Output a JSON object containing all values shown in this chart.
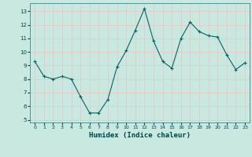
{
  "x": [
    0,
    1,
    2,
    3,
    4,
    5,
    6,
    7,
    8,
    9,
    10,
    11,
    12,
    13,
    14,
    15,
    16,
    17,
    18,
    19,
    20,
    21,
    22,
    23
  ],
  "y": [
    9.3,
    8.2,
    8.0,
    8.2,
    8.0,
    6.7,
    5.5,
    5.5,
    6.5,
    8.9,
    10.1,
    11.6,
    13.2,
    10.8,
    9.3,
    8.8,
    11.0,
    12.2,
    11.5,
    11.2,
    11.1,
    9.8,
    8.7,
    9.2
  ],
  "xlabel": "Humidex (Indice chaleur)",
  "ylim": [
    4.8,
    13.6
  ],
  "xlim": [
    -0.5,
    23.5
  ],
  "yticks": [
    5,
    6,
    7,
    8,
    9,
    10,
    11,
    12,
    13
  ],
  "xtick_labels": [
    "0",
    "1",
    "2",
    "3",
    "4",
    "5",
    "6",
    "7",
    "8",
    "9",
    "10",
    "11",
    "12",
    "13",
    "14",
    "15",
    "16",
    "17",
    "18",
    "19",
    "20",
    "21",
    "22",
    "23"
  ],
  "line_color": "#006666",
  "marker_color": "#006666",
  "bg_color": "#c8e8e0",
  "grid_color": "#e8c8c8",
  "figsize": [
    3.2,
    2.0
  ],
  "dpi": 100
}
